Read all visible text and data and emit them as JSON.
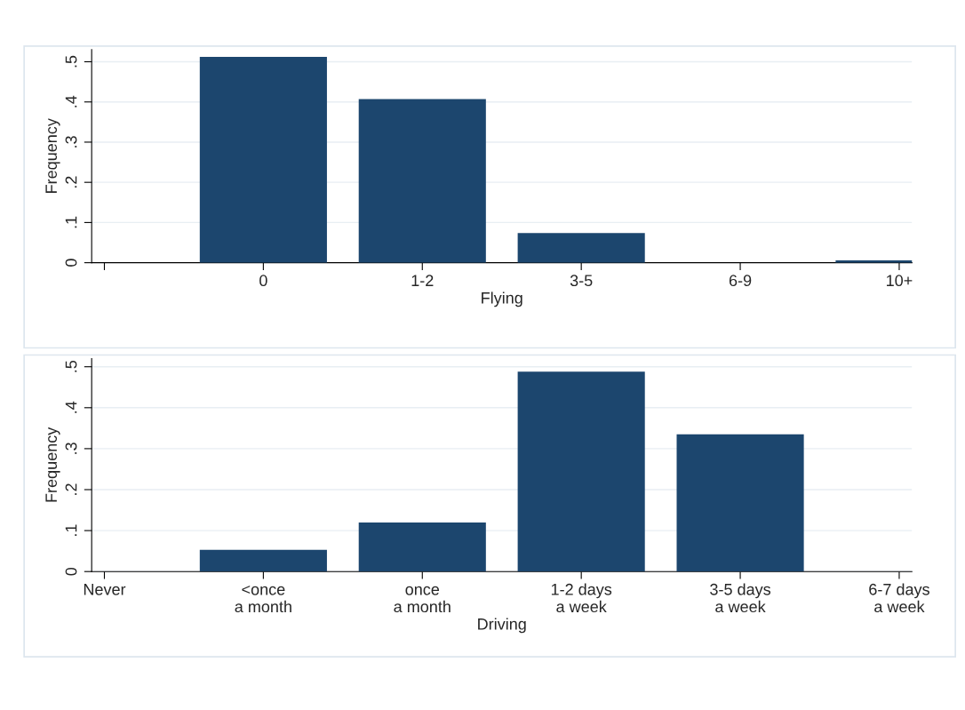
{
  "chart_data": [
    {
      "type": "bar",
      "xlabel": "Flying",
      "ylabel": "Frequency",
      "categories": [
        null,
        "0",
        "1-2",
        "3-5",
        "6-9",
        "10+"
      ],
      "series": [
        {
          "color": "#1c466e",
          "values": [
            null,
            0.512,
            0.407,
            0.074,
            0,
            0.006
          ]
        }
      ],
      "ylim": [
        0,
        0.53
      ],
      "yticks": [
        0,
        {
          "value": 0.1,
          "label": ".1"
        },
        {
          "value": 0.2,
          "label": ".2"
        },
        {
          "value": 0.3,
          "label": ".3"
        },
        {
          "value": 0.4,
          "label": ".4"
        },
        {
          "value": 0.5,
          "label": ".5"
        }
      ],
      "grid": "y"
    },
    {
      "type": "bar",
      "xlabel": "Driving",
      "ylabel": "Frequency",
      "categories": [
        "Never",
        "<once\na month",
        "once\na month",
        "1-2 days\na week",
        "3-5 days\na week",
        "6-7 days\na week"
      ],
      "series": [
        {
          "color": "#1c466e",
          "values": [
            0,
            0.053,
            0.12,
            0.488,
            0.335,
            0
          ]
        }
      ],
      "ylim": [
        0,
        0.52
      ],
      "yticks": [
        0,
        {
          "value": 0.1,
          "label": ".1"
        },
        {
          "value": 0.2,
          "label": ".2"
        },
        {
          "value": 0.3,
          "label": ".3"
        },
        {
          "value": 0.4,
          "label": ".4"
        },
        {
          "value": 0.5,
          "label": ".5"
        }
      ],
      "grid": "y"
    }
  ]
}
